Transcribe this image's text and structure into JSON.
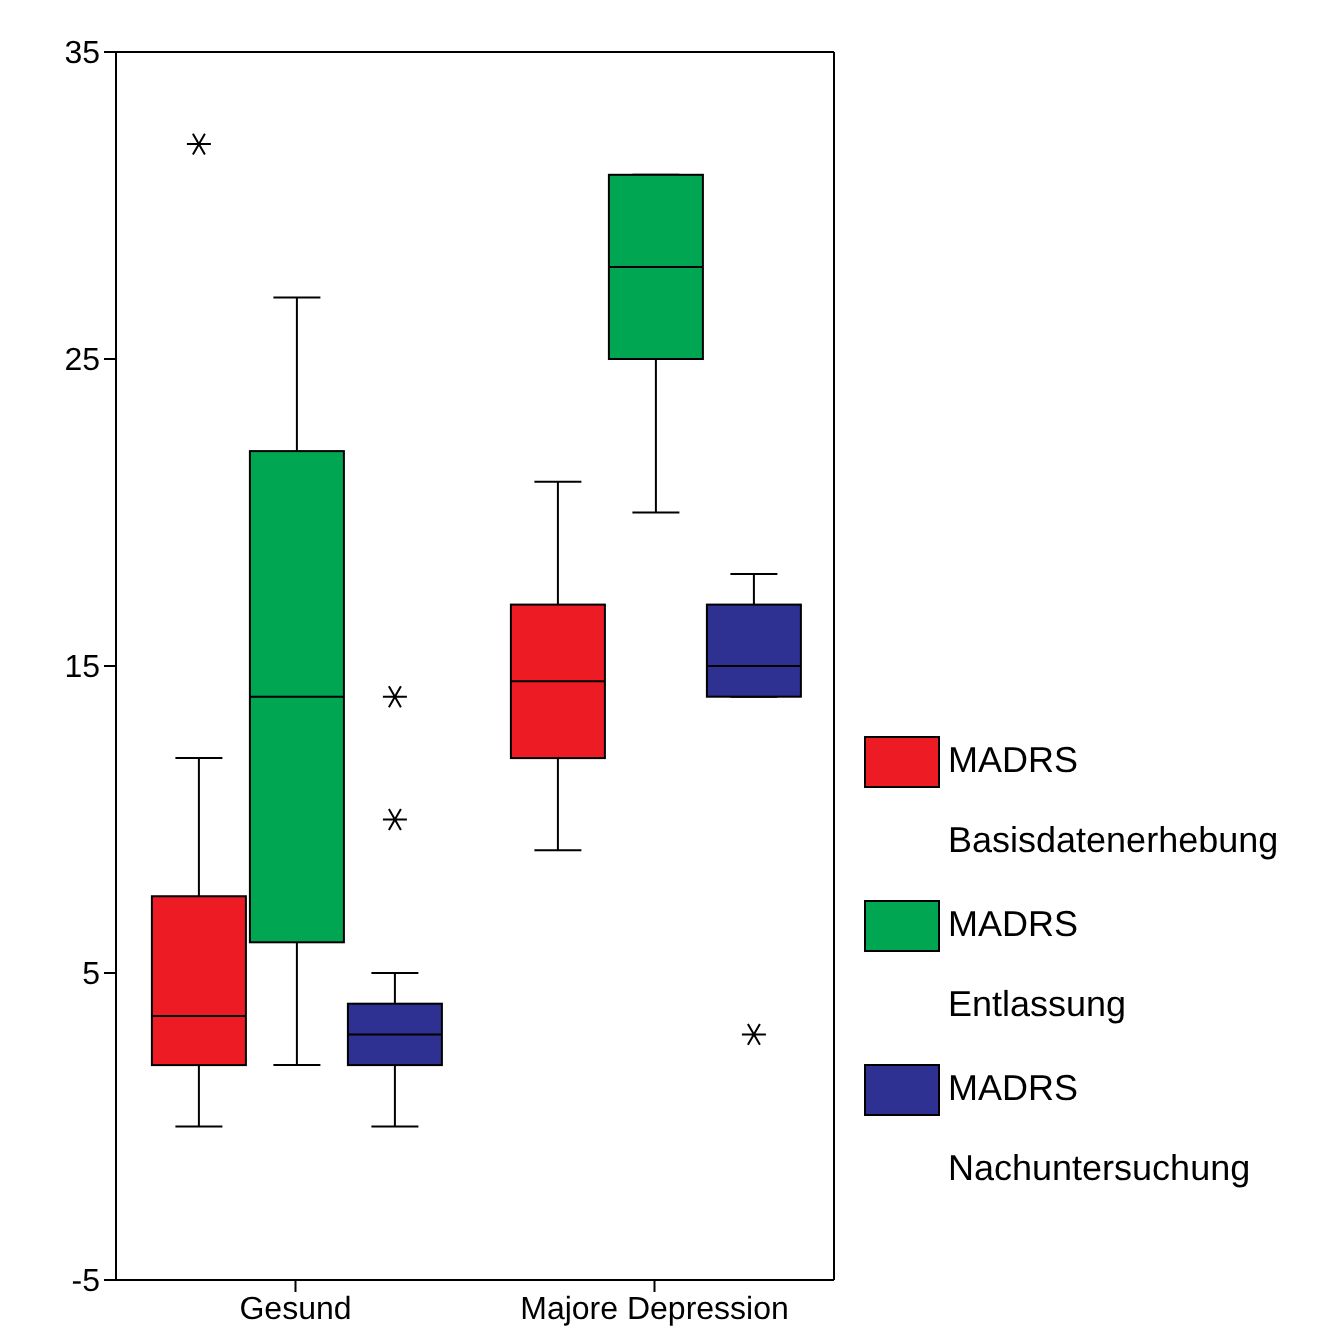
{
  "chart_data": {
    "type": "box",
    "categories": [
      "Gesund",
      "Majore Depression"
    ],
    "ylim": [
      -5,
      35
    ],
    "yticks": [
      -5,
      5,
      15,
      25,
      35
    ],
    "legend": "right",
    "series": [
      {
        "name": "MADRS Basisdatenerhebung",
        "color": "#ed1c24",
        "boxes": [
          {
            "low": 0,
            "q1": 2,
            "median": 3.6,
            "q3": 7.5,
            "high": 12,
            "outliers": [
              32
            ]
          },
          {
            "low": 9,
            "q1": 12,
            "median": 14.5,
            "q3": 17,
            "high": 21
          }
        ]
      },
      {
        "name": "MADRS Entlassung",
        "color": "#00a651",
        "boxes": [
          {
            "low": 2,
            "q1": 6,
            "median": 14,
            "q3": 22,
            "high": 27
          },
          {
            "low": 20,
            "q1": 25,
            "median": 28,
            "q3": 31,
            "high": 31
          }
        ]
      },
      {
        "name": "MADRS Nachuntersuchung",
        "color": "#2e3192",
        "boxes": [
          {
            "low": 0,
            "q1": 2,
            "median": 3,
            "q3": 4,
            "high": 5,
            "outliers": [
              10,
              14
            ]
          },
          {
            "low": 14,
            "q1": 14,
            "median": 15,
            "q3": 17,
            "high": 18,
            "outliers": [
              3
            ]
          }
        ]
      }
    ]
  }
}
